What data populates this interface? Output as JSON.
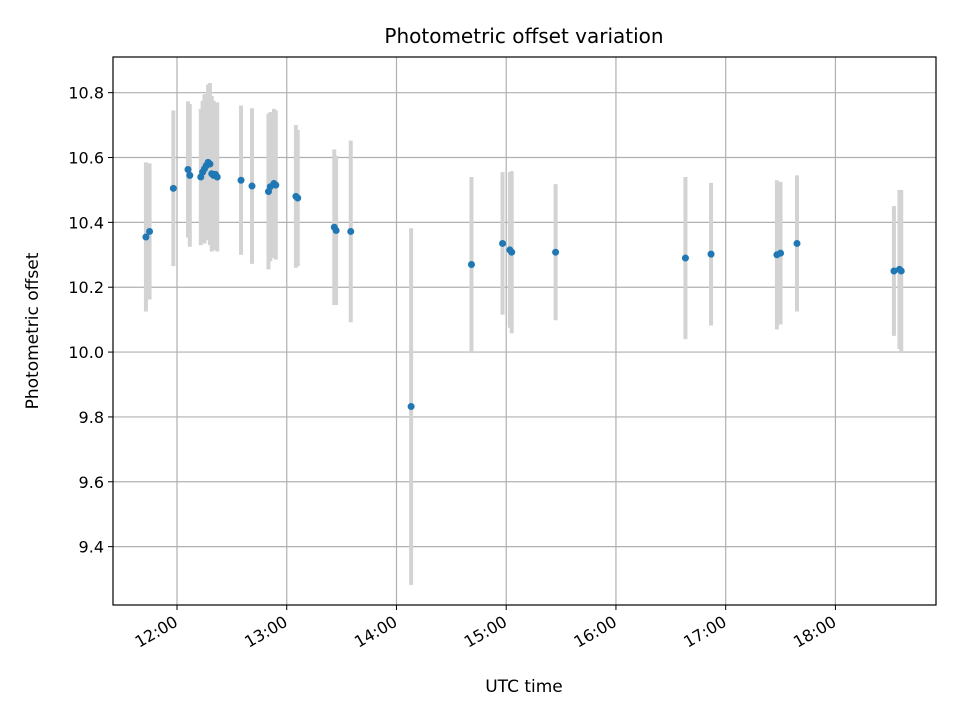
{
  "chart_data": {
    "type": "scatter",
    "title": "Photometric offset variation",
    "xlabel": "UTC time",
    "ylabel": "Photometric offset",
    "xlim": [
      "11:25",
      "18:55"
    ],
    "ylim": [
      9.22,
      10.91
    ],
    "x_ticks": [
      "12:00",
      "13:00",
      "14:00",
      "15:00",
      "16:00",
      "17:00",
      "18:00"
    ],
    "y_ticks": [
      "9.4",
      "9.6",
      "9.8",
      "10.0",
      "10.2",
      "10.4",
      "10.6",
      "10.8"
    ],
    "grid": true,
    "colors": {
      "point": "#1f77b4",
      "errorbar": "#d3d3d3",
      "grid": "#b0b0b0"
    },
    "series": [
      {
        "points": [
          {
            "x": "11:43",
            "y": 10.355,
            "yerr": 0.23
          },
          {
            "x": "11:45",
            "y": 10.372,
            "yerr": 0.21
          },
          {
            "x": "11:58",
            "y": 10.505,
            "yerr": 0.24
          },
          {
            "x": "12:06",
            "y": 10.563,
            "yerr": 0.21
          },
          {
            "x": "12:07",
            "y": 10.545,
            "yerr": 0.22
          },
          {
            "x": "12:13",
            "y": 10.54,
            "yerr": 0.21
          },
          {
            "x": "12:14",
            "y": 10.555,
            "yerr": 0.22
          },
          {
            "x": "12:15",
            "y": 10.565,
            "yerr": 0.23
          },
          {
            "x": "12:16",
            "y": 10.575,
            "yerr": 0.22
          },
          {
            "x": "12:17",
            "y": 10.585,
            "yerr": 0.24
          },
          {
            "x": "12:18",
            "y": 10.58,
            "yerr": 0.25
          },
          {
            "x": "12:19",
            "y": 10.55,
            "yerr": 0.24
          },
          {
            "x": "12:20",
            "y": 10.545,
            "yerr": 0.23
          },
          {
            "x": "12:21",
            "y": 10.548,
            "yerr": 0.22
          },
          {
            "x": "12:22",
            "y": 10.54,
            "yerr": 0.23
          },
          {
            "x": "12:35",
            "y": 10.53,
            "yerr": 0.23
          },
          {
            "x": "12:41",
            "y": 10.512,
            "yerr": 0.24
          },
          {
            "x": "12:50",
            "y": 10.495,
            "yerr": 0.24
          },
          {
            "x": "12:51",
            "y": 10.51,
            "yerr": 0.23
          },
          {
            "x": "12:53",
            "y": 10.52,
            "yerr": 0.23
          },
          {
            "x": "12:54",
            "y": 10.515,
            "yerr": 0.23
          },
          {
            "x": "13:05",
            "y": 10.48,
            "yerr": 0.22
          },
          {
            "x": "13:06",
            "y": 10.475,
            "yerr": 0.21
          },
          {
            "x": "13:26",
            "y": 10.385,
            "yerr": 0.24
          },
          {
            "x": "13:27",
            "y": 10.375,
            "yerr": 0.23
          },
          {
            "x": "13:35",
            "y": 10.372,
            "yerr": 0.28
          },
          {
            "x": "14:08",
            "y": 9.832,
            "yerr": 0.55
          },
          {
            "x": "14:41",
            "y": 10.27,
            "yerr": 0.27
          },
          {
            "x": "14:58",
            "y": 10.335,
            "yerr": 0.22
          },
          {
            "x": "15:02",
            "y": 10.315,
            "yerr": 0.24
          },
          {
            "x": "15:03",
            "y": 10.308,
            "yerr": 0.25
          },
          {
            "x": "15:27",
            "y": 10.308,
            "yerr": 0.21
          },
          {
            "x": "16:38",
            "y": 10.29,
            "yerr": 0.25
          },
          {
            "x": "16:52",
            "y": 10.302,
            "yerr": 0.22
          },
          {
            "x": "17:28",
            "y": 10.3,
            "yerr": 0.23
          },
          {
            "x": "17:30",
            "y": 10.305,
            "yerr": 0.22
          },
          {
            "x": "17:39",
            "y": 10.335,
            "yerr": 0.21
          },
          {
            "x": "18:32",
            "y": 10.25,
            "yerr": 0.2
          },
          {
            "x": "18:35",
            "y": 10.255,
            "yerr": 0.245
          },
          {
            "x": "18:36",
            "y": 10.25,
            "yerr": 0.25
          }
        ]
      }
    ]
  }
}
